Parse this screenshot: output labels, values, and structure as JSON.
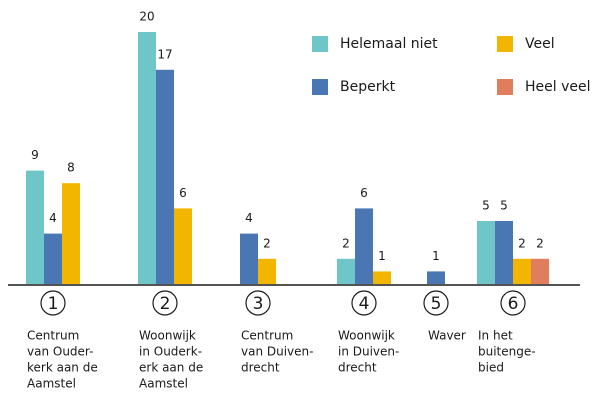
{
  "chart_data": {
    "type": "bar",
    "markers": [
      1,
      2,
      3,
      4,
      5,
      6
    ],
    "categories": [
      [
        "Centrum",
        "van Ouder-",
        "kerk aan de",
        "Aamstel"
      ],
      [
        "Woonwijk",
        "in Ouderk-",
        "erk aan de",
        "Aamstel"
      ],
      [
        "Centrum",
        "van Duiven-",
        "drecht"
      ],
      [
        "Woonwijk",
        "in Duiven-",
        "drecht"
      ],
      [
        "Waver"
      ],
      [
        "In het",
        "buitenge-",
        "bied"
      ]
    ],
    "series": [
      {
        "name": "Helemaal niet",
        "color": "#6fc6c9",
        "values": [
          9,
          20,
          null,
          2,
          null,
          5
        ]
      },
      {
        "name": "Beperkt",
        "color": "#4a77b4",
        "values": [
          4,
          17,
          4,
          6,
          1,
          5
        ]
      },
      {
        "name": "Veel",
        "color": "#f2b600",
        "values": [
          8,
          6,
          2,
          1,
          null,
          2
        ]
      },
      {
        "name": "Heel veel",
        "color": "#e07d5c",
        "values": [
          null,
          null,
          null,
          null,
          null,
          2
        ]
      }
    ],
    "ylim": [
      0,
      20
    ]
  }
}
